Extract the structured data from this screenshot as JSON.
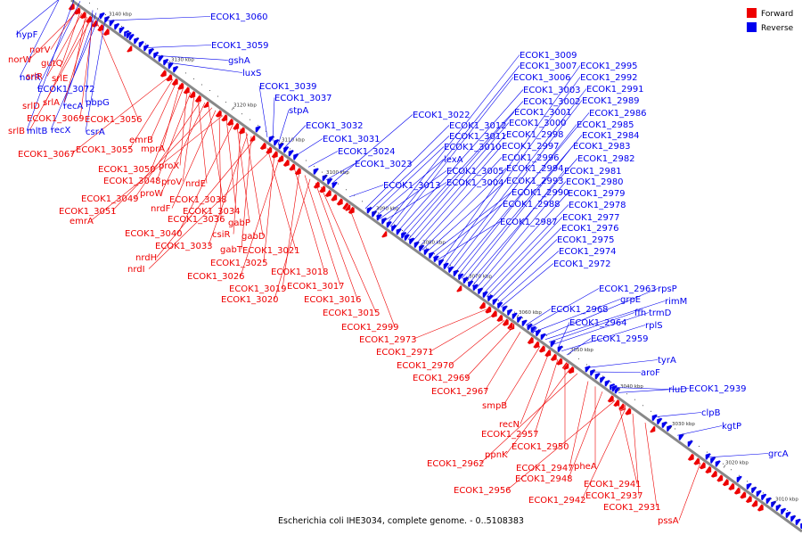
{
  "caption": "Escherichia coli IHE3034, complete genome. - 0..5108383",
  "colors": {
    "forward": "#ee0000",
    "reverse": "#0000ee",
    "backbone": "#888888"
  },
  "legend": [
    {
      "label": "Forward",
      "color": "#ee0000"
    },
    {
      "label": "Reverse",
      "color": "#0000ee"
    }
  ],
  "ticks": [
    "3140 kbp",
    "3130 kbp",
    "3120 kbp",
    "3110 kbp",
    "3100 kbp",
    "3090 kbp",
    "3080 kbp",
    "3070 kbp",
    "3060 kbp",
    "3050 kbp",
    "3040 kbp",
    "3030 kbp",
    "3020 kbp",
    "3010 kbp"
  ],
  "reverse_labels": [
    "ECOK1_3060",
    "ECOK1_3059",
    "gshA",
    "luxS",
    "ECOK1_3039",
    "ECOK1_3037",
    "stpA",
    "ECOK1_3032",
    "ECOK1_3031",
    "ECOK1_3024",
    "ECOK1_3023",
    "ECOK1_3022",
    "ECOK1_3013",
    "ECOK1_3012",
    "ECOK1_3011",
    "ECOK1_3010",
    "lexA",
    "ECOK1_3005",
    "ECOK1_3004",
    "ECOK1_3009",
    "ECOK1_3007",
    "ECOK1_3006",
    "ECOK1_3003",
    "ECOK1_3002",
    "ECOK1_3001",
    "ECOK1_3000",
    "ECOK1_2998",
    "ECOK1_2997",
    "ECOK1_2996",
    "ECOK1_2994",
    "ECOK1_2993",
    "ECOK1_2990",
    "ECOK1_2988",
    "ECOK1_2987",
    "ECOK1_2995",
    "ECOK1_2992",
    "ECOK1_2991",
    "ECOK1_2989",
    "ECOK1_2986",
    "ECOK1_2985",
    "ECOK1_2984",
    "ECOK1_2983",
    "ECOK1_2982",
    "ECOK1_2981",
    "ECOK1_2980",
    "ECOK1_2979",
    "ECOK1_2978",
    "ECOK1_2977",
    "ECOK1_2976",
    "ECOK1_2975",
    "ECOK1_2974",
    "ECOK1_2972",
    "ECOK1_2963",
    "rpsP",
    "grpE",
    "rimM",
    "ECOK1_2968",
    "ffh",
    "trmD",
    "ECOK1_2964",
    "rplS",
    "ECOK1_2959",
    "tyrA",
    "aroF",
    "rluD",
    "ECOK1_2939",
    "clpB",
    "kgtP",
    "grcA",
    "hypF",
    "norR",
    "ECOK1_3072",
    "pbpG",
    "recA",
    "recX",
    "csrA",
    "mltB"
  ],
  "forward_labels": [
    "norV",
    "norW",
    "gutQ",
    "srlR",
    "srlE",
    "srlA",
    "srlD",
    "ECOK1_3069",
    "ECOK1_3056",
    "srlB",
    "ECOK1_3067",
    "ECOK1_3055",
    "emrB",
    "mprA",
    "ECOK1_3050",
    "proX",
    "ECOK1_3048",
    "proV",
    "nrdE",
    "ECOK1_3049",
    "proW",
    "ECOK1_3038",
    "ECOK1_3051",
    "nrdF",
    "ECOK1_3036",
    "emrA",
    "ECOK1_3034",
    "gabP",
    "ECOK1_3040",
    "csiR",
    "gabD",
    "ECOK1_3033",
    "gabT",
    "nrdH",
    "ECOK1_3021",
    "nrdI",
    "ECOK1_3025",
    "ECOK1_3026",
    "ECOK1_3018",
    "ECOK1_3019",
    "ECOK1_3017",
    "ECOK1_3020",
    "ECOK1_3016",
    "ECOK1_3015",
    "ECOK1_2999",
    "ECOK1_2973",
    "ECOK1_2971",
    "ECOK1_2970",
    "ECOK1_2969",
    "ECOK1_2967",
    "smpB",
    "recN",
    "ECOK1_2957",
    "ECOK1_2950",
    "ppnK",
    "ECOK1_2962",
    "ECOK1_2947",
    "pheA",
    "ECOK1_2948",
    "ECOK1_2956",
    "ECOK1_2941",
    "ECOK1_2942",
    "ECOK1_2937",
    "ECOK1_2931",
    "pssA"
  ]
}
